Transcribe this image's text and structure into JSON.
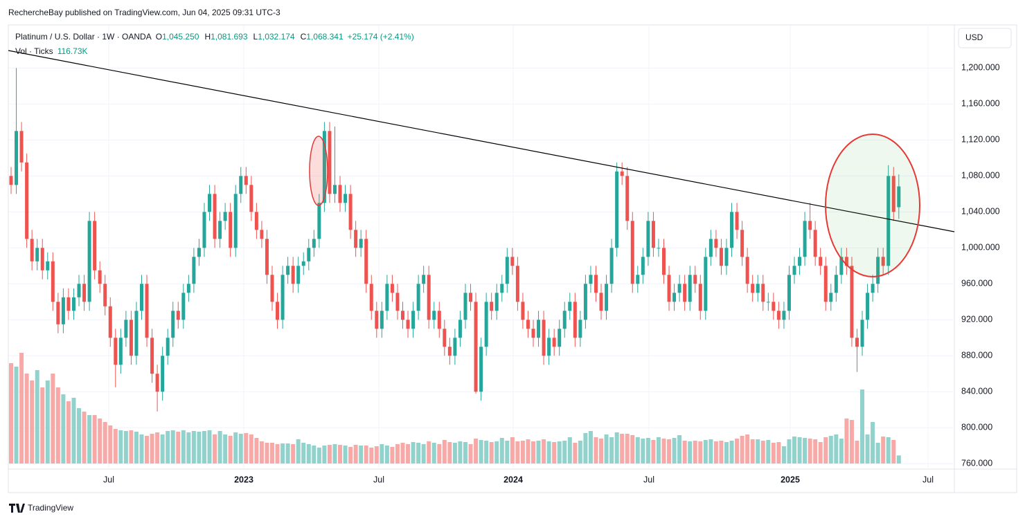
{
  "header": {
    "published": "RechercheBay published on TradingView.com, Jun 04, 2025 09:31 UTC-3",
    "logo": "TradingView"
  },
  "chart_data": {
    "type": "candlestick",
    "legend": {
      "symbol": "Platinum / U.S. Dollar · 1W · OANDA",
      "o_label": "O",
      "o": "1,045.250",
      "h_label": "H",
      "h": "1,081.693",
      "l_label": "L",
      "l": "1,032.174",
      "c_label": "C",
      "c": "1,068.341",
      "change": "+25.174 (+2.41%)",
      "volume_label": "Vol · Ticks",
      "volume": "116.73K"
    },
    "currency": "USD",
    "up_color": "#26a69a",
    "down_color": "#ef5350",
    "volume_up_color": "#92d2cc",
    "volume_down_color": "#f7a9a7",
    "trendline_color": "#000000",
    "xticks": [
      {
        "label": "Jul"
      },
      {
        "label": "2023"
      },
      {
        "label": "Jul"
      },
      {
        "label": "2024"
      },
      {
        "label": "Jul"
      },
      {
        "label": "2025"
      },
      {
        "label": "Jul"
      }
    ],
    "ylim": [
      754,
      1248
    ],
    "yticks": [
      {
        "value": 760,
        "label": "760.000"
      },
      {
        "value": 800,
        "label": "800.000"
      },
      {
        "value": 840,
        "label": "840.000"
      },
      {
        "value": 880,
        "label": "880.000"
      },
      {
        "value": 920,
        "label": "920.000"
      },
      {
        "value": 960,
        "label": "960.000"
      },
      {
        "value": 1000,
        "label": "1,000.000"
      },
      {
        "value": 1040,
        "label": "1,040.000"
      },
      {
        "value": 1080,
        "label": "1,080.000"
      },
      {
        "value": 1120,
        "label": "1,120.000"
      },
      {
        "value": 1160,
        "label": "1,160.000"
      },
      {
        "value": 1200,
        "label": "1,200.000"
      }
    ],
    "grid": true,
    "open": [
      1080,
      1070,
      1130,
      1095,
      1010,
      985,
      1000,
      975,
      985,
      940,
      915,
      945,
      930,
      945,
      960,
      940,
      1030,
      975,
      960,
      935,
      900,
      870,
      900,
      920,
      880,
      930,
      960,
      900,
      860,
      840,
      880,
      900,
      930,
      920,
      950,
      960,
      990,
      1000,
      1040,
      1060,
      1010,
      1030,
      1040,
      1000,
      1060,
      1080,
      1070,
      1040,
      1020,
      1010,
      970,
      940,
      920,
      970,
      980,
      960,
      980,
      985,
      1000,
      1010,
      1050,
      1130,
      1060,
      1070,
      1050,
      1060,
      1020,
      1000,
      1010,
      960,
      930,
      910,
      930,
      960,
      950,
      930,
      920,
      910,
      930,
      960,
      970,
      920,
      930,
      910,
      890,
      880,
      900,
      920,
      950,
      940,
      840,
      890,
      940,
      930,
      950,
      960,
      990,
      980,
      940,
      920,
      910,
      900,
      920,
      880,
      900,
      890,
      910,
      930,
      940,
      900,
      920,
      960,
      970,
      950,
      930,
      960,
      1000,
      1085,
      1080,
      1030,
      960,
      970,
      990,
      1030,
      1000,
      1000,
      970,
      940,
      950,
      960,
      940,
      970,
      960,
      930,
      990,
      1010,
      1000,
      980,
      1000,
      1040,
      1020,
      990,
      960,
      950,
      960,
      940,
      940,
      930,
      920,
      930,
      970,
      980,
      990,
      1030,
      1020,
      990,
      980,
      940,
      950,
      970,
      990,
      980,
      900,
      890,
      920,
      950,
      960,
      990,
      980,
      1080,
      1045.25
    ],
    "high": [
      1090,
      1200,
      1140,
      1105,
      1020,
      1010,
      1010,
      995,
      995,
      950,
      955,
      955,
      955,
      970,
      970,
      1040,
      1040,
      985,
      970,
      945,
      910,
      910,
      930,
      930,
      940,
      970,
      970,
      910,
      870,
      890,
      910,
      940,
      940,
      960,
      970,
      1000,
      1010,
      1050,
      1070,
      1070,
      1040,
      1050,
      1050,
      1070,
      1090,
      1090,
      1080,
      1050,
      1030,
      1020,
      980,
      950,
      980,
      990,
      990,
      990,
      995,
      1010,
      1020,
      1060,
      1140,
      1140,
      1135,
      1080,
      1070,
      1070,
      1030,
      1020,
      1020,
      970,
      940,
      940,
      970,
      970,
      960,
      940,
      930,
      940,
      970,
      980,
      980,
      940,
      940,
      920,
      900,
      910,
      930,
      960,
      960,
      950,
      900,
      950,
      950,
      960,
      970,
      1000,
      1000,
      990,
      950,
      930,
      920,
      930,
      930,
      910,
      910,
      920,
      940,
      950,
      950,
      930,
      970,
      980,
      980,
      960,
      970,
      1010,
      1095,
      1095,
      1090,
      1040,
      980,
      1000,
      1040,
      1040,
      1010,
      1010,
      980,
      960,
      970,
      970,
      980,
      980,
      970,
      1000,
      1020,
      1020,
      1010,
      1010,
      1050,
      1050,
      1030,
      1000,
      970,
      970,
      970,
      950,
      950,
      940,
      940,
      980,
      990,
      1000,
      1040,
      1050,
      1030,
      1000,
      990,
      960,
      980,
      1000,
      1000,
      990,
      910,
      930,
      960,
      970,
      1000,
      1000,
      1092,
      1090,
      1081.693
    ],
    "low": [
      1060,
      1060,
      1085,
      1000,
      975,
      975,
      965,
      965,
      930,
      905,
      905,
      920,
      920,
      935,
      930,
      930,
      965,
      950,
      925,
      890,
      845,
      860,
      890,
      870,
      870,
      920,
      890,
      850,
      818,
      830,
      870,
      890,
      910,
      910,
      940,
      950,
      980,
      990,
      1030,
      1000,
      1000,
      1020,
      990,
      990,
      1050,
      1060,
      1030,
      1010,
      1000,
      960,
      930,
      910,
      910,
      960,
      950,
      950,
      970,
      975,
      990,
      1000,
      1040,
      1050,
      1050,
      1040,
      1040,
      1010,
      990,
      990,
      950,
      920,
      900,
      900,
      920,
      940,
      920,
      910,
      900,
      900,
      920,
      950,
      910,
      910,
      900,
      880,
      870,
      870,
      890,
      910,
      930,
      838,
      830,
      880,
      920,
      920,
      940,
      950,
      970,
      930,
      910,
      900,
      890,
      890,
      870,
      870,
      880,
      880,
      900,
      920,
      890,
      890,
      910,
      950,
      940,
      920,
      920,
      950,
      990,
      1070,
      1020,
      950,
      950,
      960,
      980,
      990,
      990,
      960,
      930,
      930,
      940,
      930,
      930,
      950,
      920,
      920,
      980,
      990,
      970,
      970,
      990,
      1010,
      980,
      950,
      940,
      940,
      930,
      930,
      920,
      910,
      910,
      920,
      960,
      970,
      980,
      1010,
      980,
      970,
      930,
      930,
      940,
      960,
      970,
      890,
      862,
      880,
      910,
      940,
      950,
      970,
      970,
      1030,
      1032.174
    ],
    "close": [
      1070,
      1130,
      1095,
      1010,
      985,
      1000,
      975,
      985,
      940,
      915,
      945,
      930,
      945,
      960,
      940,
      1030,
      975,
      960,
      935,
      900,
      870,
      900,
      920,
      880,
      930,
      960,
      900,
      860,
      840,
      880,
      900,
      930,
      920,
      950,
      960,
      990,
      1000,
      1040,
      1060,
      1010,
      1030,
      1040,
      1000,
      1060,
      1080,
      1070,
      1040,
      1020,
      1010,
      970,
      940,
      920,
      970,
      980,
      960,
      980,
      985,
      1000,
      1010,
      1050,
      1130,
      1060,
      1070,
      1050,
      1060,
      1020,
      1000,
      1010,
      960,
      930,
      910,
      930,
      960,
      950,
      930,
      920,
      910,
      930,
      960,
      970,
      920,
      930,
      910,
      890,
      880,
      900,
      920,
      950,
      940,
      840,
      890,
      940,
      930,
      950,
      960,
      990,
      980,
      940,
      920,
      910,
      900,
      920,
      880,
      900,
      890,
      910,
      930,
      940,
      900,
      920,
      960,
      970,
      950,
      930,
      960,
      1000,
      1085,
      1080,
      1030,
      960,
      970,
      990,
      1030,
      1000,
      1000,
      970,
      940,
      950,
      960,
      940,
      970,
      960,
      930,
      990,
      1010,
      1000,
      980,
      1000,
      1040,
      1020,
      990,
      960,
      950,
      960,
      940,
      940,
      930,
      920,
      930,
      970,
      980,
      990,
      1030,
      1020,
      990,
      980,
      940,
      950,
      970,
      990,
      980,
      900,
      890,
      920,
      950,
      960,
      990,
      980,
      1080,
      1040,
      1068.341
    ],
    "volume": [
      1450,
      1400,
      1600,
      1300,
      1200,
      1350,
      1100,
      1200,
      1300,
      1100,
      1000,
      900,
      950,
      800,
      750,
      700,
      700,
      650,
      600,
      550,
      500,
      480,
      470,
      480,
      460,
      420,
      400,
      430,
      450,
      420,
      470,
      480,
      460,
      480,
      450,
      470,
      460,
      470,
      480,
      420,
      470,
      420,
      400,
      450,
      430,
      440,
      420,
      370,
      320,
      300,
      300,
      280,
      290,
      290,
      280,
      350,
      300,
      280,
      260,
      230,
      260,
      270,
      280,
      270,
      260,
      240,
      270,
      260,
      260,
      230,
      250,
      280,
      260,
      240,
      280,
      300,
      280,
      310,
      300,
      280,
      320,
      300,
      280,
      340,
      310,
      300,
      320,
      310,
      280,
      360,
      340,
      330,
      310,
      320,
      370,
      330,
      380,
      320,
      330,
      350,
      320,
      330,
      350,
      320,
      310,
      320,
      330,
      380,
      300,
      330,
      440,
      470,
      380,
      360,
      420,
      380,
      450,
      430,
      430,
      410,
      380,
      360,
      370,
      340,
      380,
      360,
      350,
      370,
      410,
      330,
      320,
      330,
      320,
      340,
      350,
      320,
      330,
      310,
      330,
      360,
      400,
      420,
      350,
      350,
      330,
      340,
      300,
      310,
      250,
      350,
      390,
      380,
      370,
      360,
      350,
      310,
      380,
      400,
      420,
      360,
      650,
      630,
      330,
      1070,
      420,
      600,
      300,
      390,
      380,
      340,
      117
    ]
  }
}
